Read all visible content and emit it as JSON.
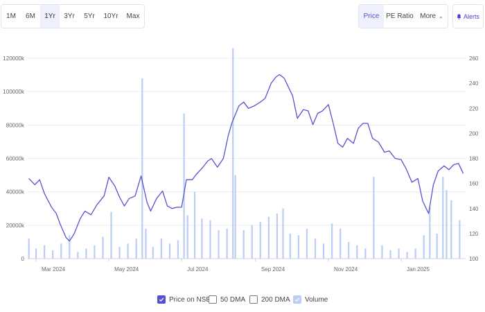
{
  "range_buttons": [
    "1M",
    "6M",
    "1Yr",
    "3Yr",
    "5Yr",
    "10Yr",
    "Max"
  ],
  "active_range": "1Yr",
  "view_buttons": {
    "price": "Price",
    "pe_ratio": "PE Ratio",
    "more": "More"
  },
  "active_view": "Price",
  "alerts_label": "Alerts",
  "legend": {
    "price": "Price on NSE",
    "dma50": "50 DMA",
    "dma200": "200 DMA",
    "volume": "Volume"
  },
  "colors": {
    "price_line": "#5a4fcf",
    "volume_bar": "#b9cdf5",
    "axis_text": "#666666",
    "accent": "#5a4fcf"
  },
  "chart_data": {
    "type": "line",
    "x_range": [
      "2024-02-23",
      "2025-02-24"
    ],
    "x_ticks": [
      {
        "date": "2024-03-01",
        "label": "Mar 2024"
      },
      {
        "date": "2024-05-01",
        "label": "May 2024"
      },
      {
        "date": "2024-07-01",
        "label": "Jul 2024"
      },
      {
        "date": "2024-09-01",
        "label": "Sep 2024"
      },
      {
        "date": "2024-11-01",
        "label": "Nov 2024"
      },
      {
        "date": "2025-01-01",
        "label": "Jan 2025"
      }
    ],
    "y_left": {
      "label": "",
      "range": [
        0,
        120000
      ],
      "ticks": [
        0,
        20000,
        40000,
        60000,
        80000,
        100000,
        120000
      ],
      "tick_labels": [
        "0",
        "20000k",
        "40000k",
        "60000k",
        "80000k",
        "100000k",
        "120000k"
      ]
    },
    "y_right": {
      "label": "",
      "range": [
        100,
        260
      ],
      "ticks": [
        100,
        120,
        140,
        160,
        180,
        200,
        220,
        240,
        260
      ],
      "tick_labels": [
        "100",
        "120",
        "140",
        "160",
        "180",
        "200",
        "220",
        "240",
        "260"
      ]
    },
    "grid": true,
    "series": [
      {
        "name": "Price on NSE",
        "axis": "right",
        "type": "line",
        "points": [
          [
            "2024-02-24",
            164
          ],
          [
            "2024-02-29",
            159
          ],
          [
            "2024-03-04",
            163
          ],
          [
            "2024-03-08",
            152
          ],
          [
            "2024-03-14",
            141
          ],
          [
            "2024-03-18",
            136
          ],
          [
            "2024-03-21",
            128
          ],
          [
            "2024-03-26",
            117
          ],
          [
            "2024-03-29",
            114
          ],
          [
            "2024-04-02",
            120
          ],
          [
            "2024-04-07",
            132
          ],
          [
            "2024-04-11",
            138
          ],
          [
            "2024-04-16",
            135
          ],
          [
            "2024-04-21",
            143
          ],
          [
            "2024-04-27",
            150
          ],
          [
            "2024-05-01",
            165
          ],
          [
            "2024-05-06",
            158
          ],
          [
            "2024-05-10",
            149
          ],
          [
            "2024-05-14",
            142
          ],
          [
            "2024-05-18",
            148
          ],
          [
            "2024-05-23",
            150
          ],
          [
            "2024-05-28",
            166
          ],
          [
            "2024-06-02",
            145
          ],
          [
            "2024-06-05",
            138
          ],
          [
            "2024-06-10",
            148
          ],
          [
            "2024-06-15",
            154
          ],
          [
            "2024-06-19",
            142
          ],
          [
            "2024-06-23",
            140
          ],
          [
            "2024-06-27",
            141
          ],
          [
            "2024-07-01",
            141
          ],
          [
            "2024-07-05",
            163
          ],
          [
            "2024-07-10",
            163
          ],
          [
            "2024-07-13",
            167
          ],
          [
            "2024-07-18",
            172
          ],
          [
            "2024-07-23",
            178
          ],
          [
            "2024-07-26",
            180
          ],
          [
            "2024-07-31",
            173
          ],
          [
            "2024-08-05",
            180
          ],
          [
            "2024-08-09",
            198
          ],
          [
            "2024-08-12",
            208
          ],
          [
            "2024-08-18",
            222
          ],
          [
            "2024-08-22",
            225
          ],
          [
            "2024-08-26",
            220
          ],
          [
            "2024-08-31",
            222
          ],
          [
            "2024-09-05",
            225
          ],
          [
            "2024-09-09",
            228
          ],
          [
            "2024-09-14",
            240
          ],
          [
            "2024-09-18",
            245
          ],
          [
            "2024-09-21",
            247
          ],
          [
            "2024-09-25",
            244
          ],
          [
            "2024-09-28",
            238
          ],
          [
            "2024-10-02",
            230
          ],
          [
            "2024-10-06",
            212
          ],
          [
            "2024-10-11",
            219
          ],
          [
            "2024-10-15",
            218
          ],
          [
            "2024-10-19",
            207
          ],
          [
            "2024-10-23",
            216
          ],
          [
            "2024-10-27",
            218
          ],
          [
            "2024-11-01",
            223
          ],
          [
            "2024-11-05",
            208
          ],
          [
            "2024-11-09",
            192
          ],
          [
            "2024-11-13",
            189
          ],
          [
            "2024-11-17",
            196
          ],
          [
            "2024-11-22",
            192
          ],
          [
            "2024-11-26",
            204
          ],
          [
            "2024-11-30",
            208
          ],
          [
            "2024-12-04",
            208
          ],
          [
            "2024-12-08",
            196
          ],
          [
            "2024-12-13",
            193
          ],
          [
            "2024-12-18",
            185
          ],
          [
            "2024-12-22",
            186
          ],
          [
            "2024-12-27",
            180
          ],
          [
            "2025-01-01",
            179
          ],
          [
            "2025-01-05",
            172
          ],
          [
            "2025-01-10",
            161
          ],
          [
            "2025-01-15",
            164
          ],
          [
            "2025-01-19",
            146
          ],
          [
            "2025-01-24",
            136
          ],
          [
            "2025-01-28",
            159
          ],
          [
            "2025-02-01",
            170
          ],
          [
            "2025-02-06",
            174
          ],
          [
            "2025-02-10",
            171
          ],
          [
            "2025-02-14",
            175
          ],
          [
            "2025-02-18",
            176
          ],
          [
            "2025-02-22",
            168
          ]
        ]
      },
      {
        "name": "Volume",
        "axis": "left",
        "type": "bar",
        "points": [
          [
            "2024-02-24",
            12000
          ],
          [
            "2024-03-01",
            6000
          ],
          [
            "2024-03-08",
            8000
          ],
          [
            "2024-03-15",
            5000
          ],
          [
            "2024-03-22",
            9000
          ],
          [
            "2024-03-29",
            14000
          ],
          [
            "2024-04-05",
            4000
          ],
          [
            "2024-04-12",
            6000
          ],
          [
            "2024-04-19",
            8000
          ],
          [
            "2024-04-26",
            13000
          ],
          [
            "2024-05-03",
            28000
          ],
          [
            "2024-05-10",
            7000
          ],
          [
            "2024-05-17",
            9000
          ],
          [
            "2024-05-24",
            12000
          ],
          [
            "2024-05-29",
            108000
          ],
          [
            "2024-06-01",
            18000
          ],
          [
            "2024-06-07",
            7000
          ],
          [
            "2024-06-14",
            12000
          ],
          [
            "2024-06-21",
            9000
          ],
          [
            "2024-06-28",
            11000
          ],
          [
            "2024-07-03",
            87000
          ],
          [
            "2024-07-06",
            26000
          ],
          [
            "2024-07-12",
            40000
          ],
          [
            "2024-07-18",
            24000
          ],
          [
            "2024-07-25",
            23000
          ],
          [
            "2024-08-01",
            17000
          ],
          [
            "2024-08-08",
            18000
          ],
          [
            "2024-08-13",
            126000
          ],
          [
            "2024-08-15",
            50000
          ],
          [
            "2024-08-22",
            17000
          ],
          [
            "2024-08-29",
            20000
          ],
          [
            "2024-09-05",
            22000
          ],
          [
            "2024-09-12",
            25000
          ],
          [
            "2024-09-19",
            27000
          ],
          [
            "2024-09-24",
            30000
          ],
          [
            "2024-09-30",
            15000
          ],
          [
            "2024-10-07",
            14000
          ],
          [
            "2024-10-14",
            18000
          ],
          [
            "2024-10-21",
            12000
          ],
          [
            "2024-10-28",
            9000
          ],
          [
            "2024-11-04",
            21000
          ],
          [
            "2024-11-11",
            18000
          ],
          [
            "2024-11-18",
            10000
          ],
          [
            "2024-11-25",
            8000
          ],
          [
            "2024-12-02",
            6000
          ],
          [
            "2024-12-09",
            49000
          ],
          [
            "2024-12-16",
            8000
          ],
          [
            "2024-12-23",
            5000
          ],
          [
            "2024-12-30",
            6000
          ],
          [
            "2025-01-06",
            4000
          ],
          [
            "2025-01-13",
            6000
          ],
          [
            "2025-01-20",
            14000
          ],
          [
            "2025-01-25",
            31000
          ],
          [
            "2025-01-31",
            15000
          ],
          [
            "2025-02-05",
            49000
          ],
          [
            "2025-02-08",
            41000
          ],
          [
            "2025-02-12",
            35000
          ],
          [
            "2025-02-19",
            23000
          ]
        ]
      }
    ]
  }
}
